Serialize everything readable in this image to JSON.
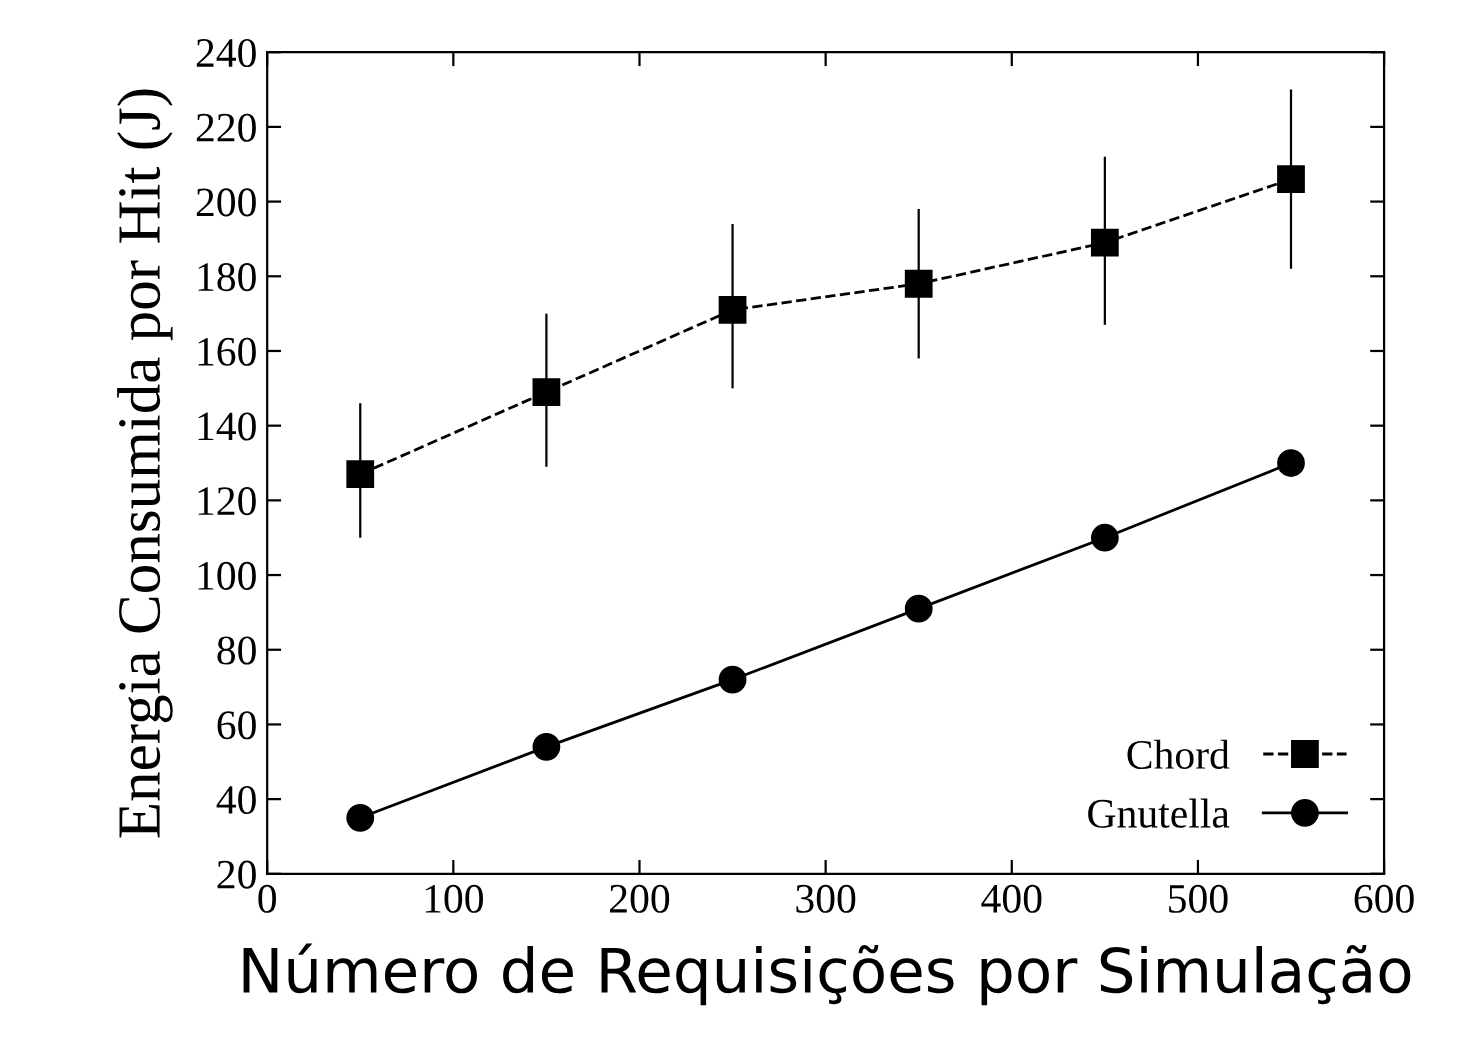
{
  "chart_data": {
    "type": "line",
    "xlabel": "Número de Requisições por Simulação",
    "ylabel": "Energia Consumida por Hit (J)",
    "x": [
      50,
      150,
      250,
      350,
      450,
      550
    ],
    "series": [
      {
        "name": "Chord",
        "color": "#000000",
        "marker": "square",
        "line_style": "dashed",
        "values": [
          127,
          149,
          171,
          178,
          189,
          206
        ],
        "errors": [
          [
            110,
            146
          ],
          [
            129,
            170
          ],
          [
            150,
            194
          ],
          [
            158,
            198
          ],
          [
            167,
            212
          ],
          [
            182,
            230
          ]
        ]
      },
      {
        "name": "Gnutella",
        "color": "#000000",
        "marker": "circle",
        "line_style": "solid",
        "values": [
          35,
          54,
          72,
          91,
          110,
          130
        ]
      }
    ],
    "xlim": [
      0,
      600
    ],
    "xticks": [
      0,
      100,
      200,
      300,
      400,
      500,
      600
    ],
    "ylim": [
      20,
      240
    ],
    "yticks": [
      20,
      40,
      60,
      80,
      100,
      120,
      140,
      160,
      180,
      200,
      220,
      240
    ],
    "grid": false,
    "legend": "bottom right"
  }
}
